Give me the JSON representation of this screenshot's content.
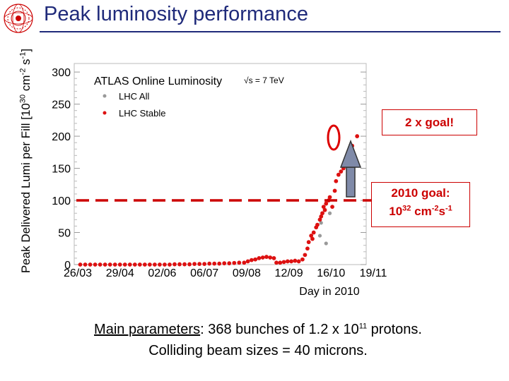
{
  "slide": {
    "title": "Peak luminosity performance",
    "logo_icon": "lhc-logo-icon",
    "params_label": "Main parameters",
    "params_line1_a": ": 368 bunches of 1.2 x 10",
    "params_line1_exp": "11",
    "params_line1_b": " protons.",
    "params_line2": "Colliding beam sizes = 40 microns."
  },
  "annotations": {
    "goal_text": "2 x goal!",
    "target_line1": "2010 goal:",
    "target_base": "10",
    "target_exp1": "32",
    "target_unit1": " cm",
    "target_exp2": "-2",
    "target_unit2": "s",
    "target_exp3": "-1",
    "arrow_icon": "up-arrow-icon",
    "circle_icon": "highlight-circle-icon",
    "accent_color": "#cc0000"
  },
  "chart_data": {
    "type": "scatter",
    "title": "ATLAS Online Luminosity",
    "energy_label": "√s = 7 TeV",
    "xlabel": "Day in 2010",
    "ylabel_base": "Peak Delivered Lumi per Fill [10",
    "ylabel_exp1": "30",
    "ylabel_mid": " cm",
    "ylabel_exp2": "-2",
    "ylabel_mid2": " s",
    "ylabel_exp3": "-1",
    "ylabel_end": "]",
    "x_tick_labels": [
      "26/03",
      "29/04",
      "02/06",
      "06/07",
      "09/08",
      "12/09",
      "16/10",
      "19/11"
    ],
    "x_tick_days": [
      0,
      34,
      68,
      102,
      136,
      170,
      204,
      238
    ],
    "xlim": [
      0,
      238
    ],
    "y_ticks": [
      0,
      50,
      100,
      150,
      200,
      250,
      300
    ],
    "ylim": [
      0,
      310
    ],
    "target_line": 100,
    "legend": [
      {
        "name": "LHC All",
        "color": "#999999"
      },
      {
        "name": "LHC Stable",
        "color": "#dd1111"
      }
    ],
    "series": [
      {
        "name": "LHC All",
        "color": "#999999",
        "points": [
          [
            195,
            45
          ],
          [
            196,
            65
          ],
          [
            200,
            33
          ],
          [
            203,
            80
          ]
        ]
      },
      {
        "name": "LHC Stable",
        "color": "#dd1111",
        "points": [
          [
            2,
            0
          ],
          [
            6,
            0
          ],
          [
            10,
            0
          ],
          [
            14,
            0
          ],
          [
            18,
            0
          ],
          [
            22,
            0
          ],
          [
            26,
            0
          ],
          [
            30,
            0
          ],
          [
            34,
            0
          ],
          [
            38,
            0
          ],
          [
            42,
            0
          ],
          [
            46,
            0
          ],
          [
            50,
            0
          ],
          [
            54,
            0
          ],
          [
            58,
            0
          ],
          [
            62,
            0
          ],
          [
            66,
            0
          ],
          [
            70,
            0
          ],
          [
            74,
            0
          ],
          [
            78,
            0.5
          ],
          [
            82,
            0.5
          ],
          [
            86,
            0.5
          ],
          [
            90,
            0.5
          ],
          [
            94,
            1
          ],
          [
            98,
            1
          ],
          [
            102,
            1
          ],
          [
            106,
            1.5
          ],
          [
            110,
            1.5
          ],
          [
            114,
            1.5
          ],
          [
            118,
            2
          ],
          [
            122,
            2
          ],
          [
            126,
            2.5
          ],
          [
            130,
            3
          ],
          [
            134,
            3
          ],
          [
            137,
            5
          ],
          [
            140,
            7
          ],
          [
            143,
            8
          ],
          [
            146,
            10
          ],
          [
            149,
            11
          ],
          [
            152,
            12
          ],
          [
            155,
            11
          ],
          [
            158,
            10
          ],
          [
            160,
            3
          ],
          [
            163,
            3
          ],
          [
            166,
            4
          ],
          [
            169,
            5
          ],
          [
            172,
            5
          ],
          [
            175,
            6
          ],
          [
            178,
            5
          ],
          [
            181,
            8
          ],
          [
            183,
            15
          ],
          [
            185,
            25
          ],
          [
            186,
            35
          ],
          [
            188,
            45
          ],
          [
            189,
            40
          ],
          [
            190,
            50
          ],
          [
            192,
            58
          ],
          [
            193,
            62
          ],
          [
            195,
            70
          ],
          [
            196,
            75
          ],
          [
            197,
            80
          ],
          [
            198,
            90
          ],
          [
            199,
            85
          ],
          [
            200,
            95
          ],
          [
            202,
            100
          ],
          [
            203,
            105
          ],
          [
            205,
            90
          ],
          [
            207,
            115
          ],
          [
            208,
            130
          ],
          [
            210,
            140
          ],
          [
            212,
            145
          ],
          [
            214,
            150
          ],
          [
            219,
            175
          ],
          [
            221,
            185
          ],
          [
            225,
            200
          ]
        ]
      }
    ]
  }
}
